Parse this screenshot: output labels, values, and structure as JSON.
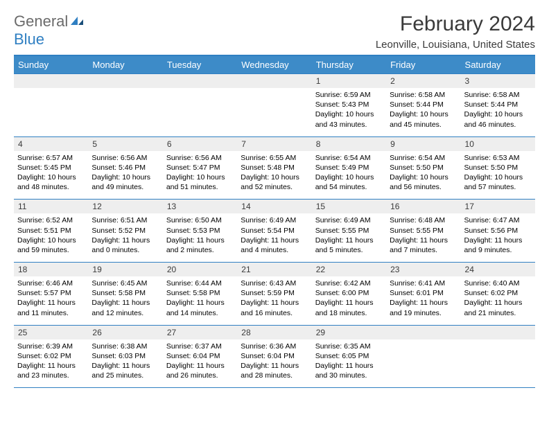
{
  "brand": {
    "part1": "General",
    "part2": "Blue"
  },
  "title": "February 2024",
  "location": "Leonville, Louisiana, United States",
  "colors": {
    "header_bg": "#3d8bc8",
    "rule": "#2f7fc2",
    "daynum_bg": "#eeeeee",
    "logo_gray": "#6b6b6b",
    "logo_blue": "#2f7fc2",
    "title_color": "#3a3a3a"
  },
  "days_of_week": [
    "Sunday",
    "Monday",
    "Tuesday",
    "Wednesday",
    "Thursday",
    "Friday",
    "Saturday"
  ],
  "weeks": [
    [
      null,
      null,
      null,
      null,
      {
        "n": "1",
        "sr": "Sunrise: 6:59 AM",
        "ss": "Sunset: 5:43 PM",
        "d1": "Daylight: 10 hours",
        "d2": "and 43 minutes."
      },
      {
        "n": "2",
        "sr": "Sunrise: 6:58 AM",
        "ss": "Sunset: 5:44 PM",
        "d1": "Daylight: 10 hours",
        "d2": "and 45 minutes."
      },
      {
        "n": "3",
        "sr": "Sunrise: 6:58 AM",
        "ss": "Sunset: 5:44 PM",
        "d1": "Daylight: 10 hours",
        "d2": "and 46 minutes."
      }
    ],
    [
      {
        "n": "4",
        "sr": "Sunrise: 6:57 AM",
        "ss": "Sunset: 5:45 PM",
        "d1": "Daylight: 10 hours",
        "d2": "and 48 minutes."
      },
      {
        "n": "5",
        "sr": "Sunrise: 6:56 AM",
        "ss": "Sunset: 5:46 PM",
        "d1": "Daylight: 10 hours",
        "d2": "and 49 minutes."
      },
      {
        "n": "6",
        "sr": "Sunrise: 6:56 AM",
        "ss": "Sunset: 5:47 PM",
        "d1": "Daylight: 10 hours",
        "d2": "and 51 minutes."
      },
      {
        "n": "7",
        "sr": "Sunrise: 6:55 AM",
        "ss": "Sunset: 5:48 PM",
        "d1": "Daylight: 10 hours",
        "d2": "and 52 minutes."
      },
      {
        "n": "8",
        "sr": "Sunrise: 6:54 AM",
        "ss": "Sunset: 5:49 PM",
        "d1": "Daylight: 10 hours",
        "d2": "and 54 minutes."
      },
      {
        "n": "9",
        "sr": "Sunrise: 6:54 AM",
        "ss": "Sunset: 5:50 PM",
        "d1": "Daylight: 10 hours",
        "d2": "and 56 minutes."
      },
      {
        "n": "10",
        "sr": "Sunrise: 6:53 AM",
        "ss": "Sunset: 5:50 PM",
        "d1": "Daylight: 10 hours",
        "d2": "and 57 minutes."
      }
    ],
    [
      {
        "n": "11",
        "sr": "Sunrise: 6:52 AM",
        "ss": "Sunset: 5:51 PM",
        "d1": "Daylight: 10 hours",
        "d2": "and 59 minutes."
      },
      {
        "n": "12",
        "sr": "Sunrise: 6:51 AM",
        "ss": "Sunset: 5:52 PM",
        "d1": "Daylight: 11 hours",
        "d2": "and 0 minutes."
      },
      {
        "n": "13",
        "sr": "Sunrise: 6:50 AM",
        "ss": "Sunset: 5:53 PM",
        "d1": "Daylight: 11 hours",
        "d2": "and 2 minutes."
      },
      {
        "n": "14",
        "sr": "Sunrise: 6:49 AM",
        "ss": "Sunset: 5:54 PM",
        "d1": "Daylight: 11 hours",
        "d2": "and 4 minutes."
      },
      {
        "n": "15",
        "sr": "Sunrise: 6:49 AM",
        "ss": "Sunset: 5:55 PM",
        "d1": "Daylight: 11 hours",
        "d2": "and 5 minutes."
      },
      {
        "n": "16",
        "sr": "Sunrise: 6:48 AM",
        "ss": "Sunset: 5:55 PM",
        "d1": "Daylight: 11 hours",
        "d2": "and 7 minutes."
      },
      {
        "n": "17",
        "sr": "Sunrise: 6:47 AM",
        "ss": "Sunset: 5:56 PM",
        "d1": "Daylight: 11 hours",
        "d2": "and 9 minutes."
      }
    ],
    [
      {
        "n": "18",
        "sr": "Sunrise: 6:46 AM",
        "ss": "Sunset: 5:57 PM",
        "d1": "Daylight: 11 hours",
        "d2": "and 11 minutes."
      },
      {
        "n": "19",
        "sr": "Sunrise: 6:45 AM",
        "ss": "Sunset: 5:58 PM",
        "d1": "Daylight: 11 hours",
        "d2": "and 12 minutes."
      },
      {
        "n": "20",
        "sr": "Sunrise: 6:44 AM",
        "ss": "Sunset: 5:58 PM",
        "d1": "Daylight: 11 hours",
        "d2": "and 14 minutes."
      },
      {
        "n": "21",
        "sr": "Sunrise: 6:43 AM",
        "ss": "Sunset: 5:59 PM",
        "d1": "Daylight: 11 hours",
        "d2": "and 16 minutes."
      },
      {
        "n": "22",
        "sr": "Sunrise: 6:42 AM",
        "ss": "Sunset: 6:00 PM",
        "d1": "Daylight: 11 hours",
        "d2": "and 18 minutes."
      },
      {
        "n": "23",
        "sr": "Sunrise: 6:41 AM",
        "ss": "Sunset: 6:01 PM",
        "d1": "Daylight: 11 hours",
        "d2": "and 19 minutes."
      },
      {
        "n": "24",
        "sr": "Sunrise: 6:40 AM",
        "ss": "Sunset: 6:02 PM",
        "d1": "Daylight: 11 hours",
        "d2": "and 21 minutes."
      }
    ],
    [
      {
        "n": "25",
        "sr": "Sunrise: 6:39 AM",
        "ss": "Sunset: 6:02 PM",
        "d1": "Daylight: 11 hours",
        "d2": "and 23 minutes."
      },
      {
        "n": "26",
        "sr": "Sunrise: 6:38 AM",
        "ss": "Sunset: 6:03 PM",
        "d1": "Daylight: 11 hours",
        "d2": "and 25 minutes."
      },
      {
        "n": "27",
        "sr": "Sunrise: 6:37 AM",
        "ss": "Sunset: 6:04 PM",
        "d1": "Daylight: 11 hours",
        "d2": "and 26 minutes."
      },
      {
        "n": "28",
        "sr": "Sunrise: 6:36 AM",
        "ss": "Sunset: 6:04 PM",
        "d1": "Daylight: 11 hours",
        "d2": "and 28 minutes."
      },
      {
        "n": "29",
        "sr": "Sunrise: 6:35 AM",
        "ss": "Sunset: 6:05 PM",
        "d1": "Daylight: 11 hours",
        "d2": "and 30 minutes."
      },
      null,
      null
    ]
  ]
}
